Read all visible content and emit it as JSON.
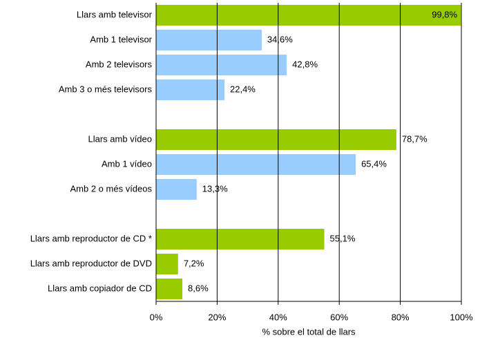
{
  "chart_data": {
    "type": "hbar",
    "categories": [
      "Llars amb televisor",
      "Amb 1 televisor",
      "Amb 2 televisors",
      "Amb 3 o més televisors",
      null,
      "Llars amb vídeo",
      "Amb 1 vídeo",
      "Amb 2 o més vídeos",
      null,
      "Llars amb reproductor de CD *",
      "Llars amb reproductor de DVD",
      "Llars amb copiador de CD"
    ],
    "values": [
      99.8,
      34.6,
      42.8,
      22.4,
      null,
      78.7,
      65.4,
      13.3,
      null,
      55.1,
      7.2,
      8.6
    ],
    "value_labels": [
      "99,8%",
      "34,6%",
      "42,8%",
      "22,4%",
      null,
      "78,7%",
      "65,4%",
      "13,3%",
      null,
      "55,1%",
      "7,2%",
      "8,6%"
    ],
    "colors": [
      "#99cc00",
      "#99ccff",
      "#99ccff",
      "#99ccff",
      null,
      "#99cc00",
      "#99ccff",
      "#99ccff",
      null,
      "#99cc00",
      "#99cc00",
      "#99cc00"
    ],
    "xlabel": "% sobre el total de llars",
    "xlim": [
      0,
      100
    ],
    "xticks": [
      {
        "value": 0,
        "label": "0%"
      },
      {
        "value": 20,
        "label": "20%"
      },
      {
        "value": 40,
        "label": "40%"
      },
      {
        "value": 60,
        "label": "60%"
      },
      {
        "value": 80,
        "label": "80%"
      },
      {
        "value": 100,
        "label": "100%"
      }
    ],
    "grid": true
  }
}
